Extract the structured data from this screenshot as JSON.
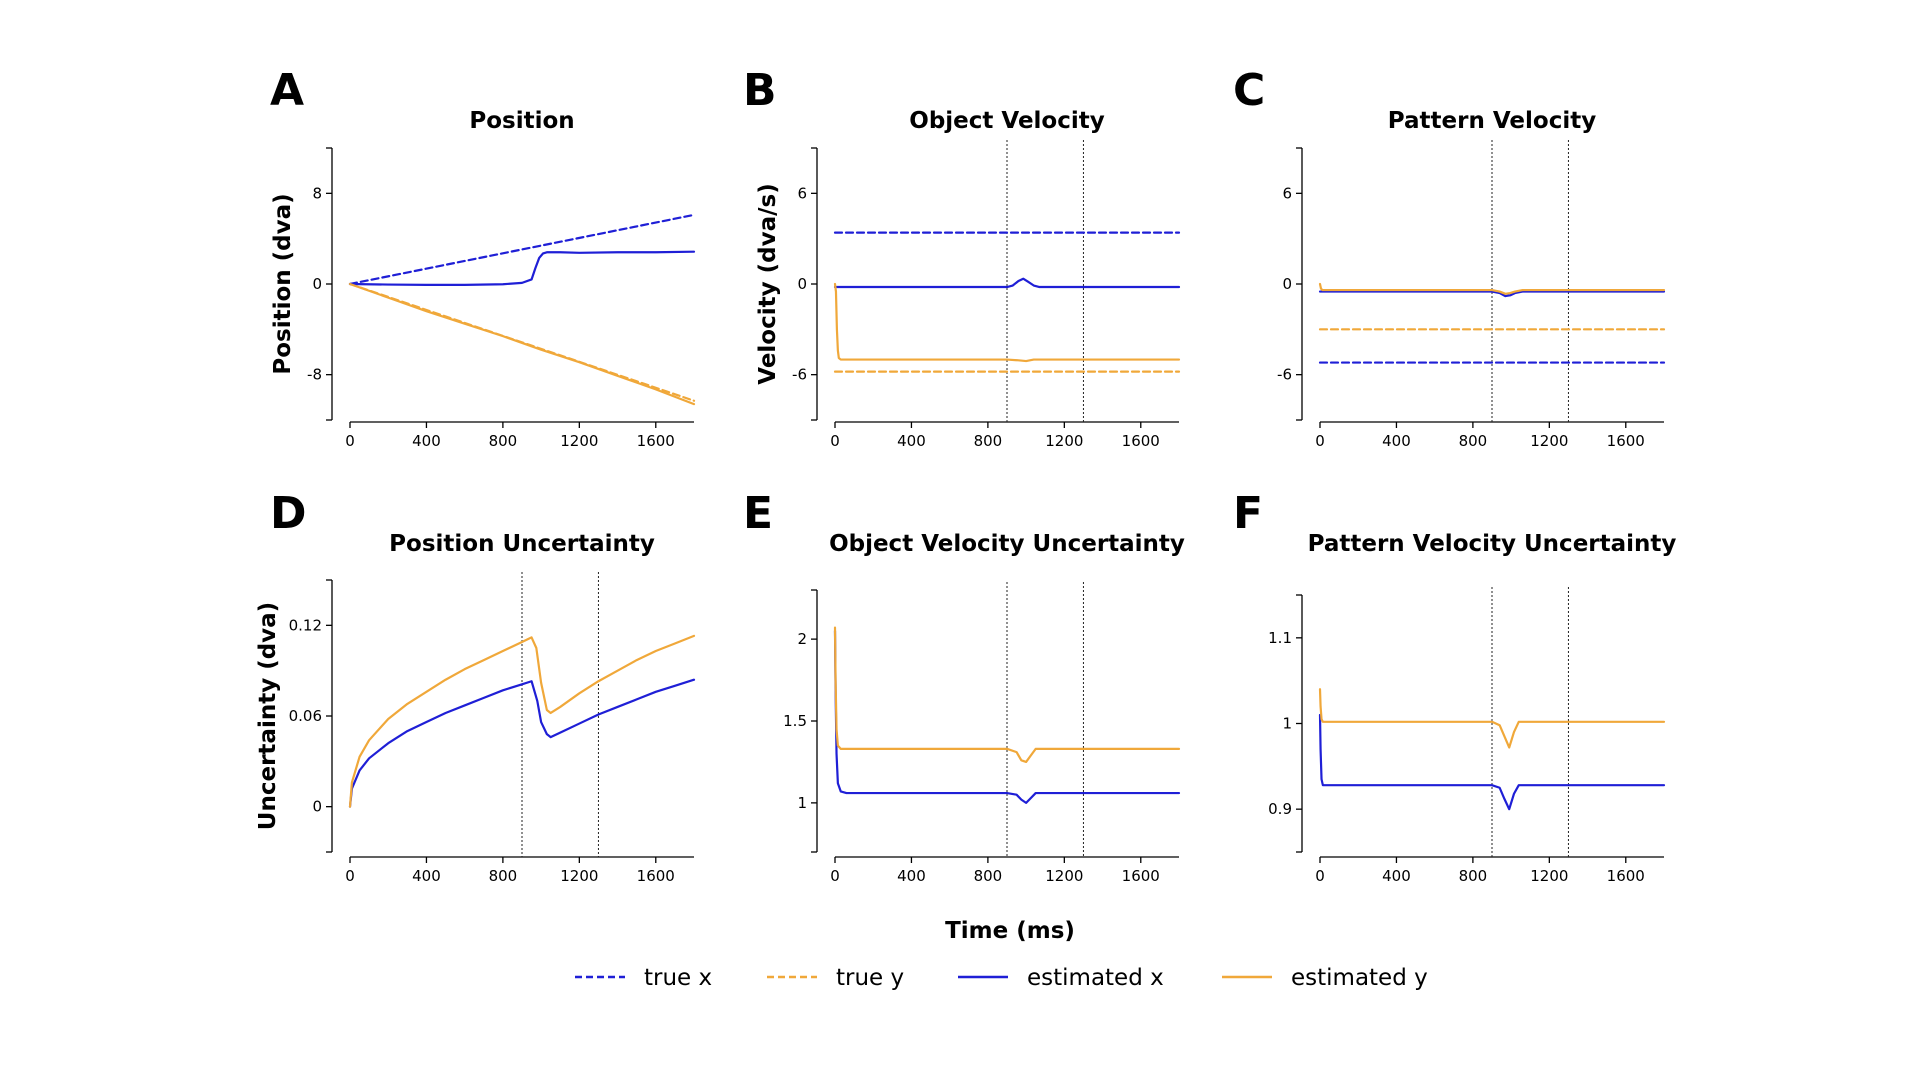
{
  "figure": {
    "shared_xlabel": "Time (ms)",
    "legend": [
      {
        "label": "true x",
        "color": "#1f1fd6",
        "dashed": true
      },
      {
        "label": "true y",
        "color": "#f0a83a",
        "dashed": true
      },
      {
        "label": "estimated x",
        "color": "#1f1fd6",
        "dashed": false
      },
      {
        "label": "estimated y",
        "color": "#f0a83a",
        "dashed": false
      }
    ],
    "colors": {
      "x": "#1f1fd6",
      "y": "#f0a83a"
    }
  },
  "chart_data": [
    {
      "id": "A",
      "letter": "A",
      "title": "Position",
      "type": "line",
      "ylabel": "Position (dva)",
      "xlim": [
        0,
        1800
      ],
      "xticks": [
        0,
        400,
        800,
        1200,
        1600
      ],
      "ylim": [
        -12,
        12
      ],
      "yticks": [
        -8,
        0,
        8
      ],
      "ytick_labels": [
        "-8",
        "0",
        "8"
      ],
      "vlines": [],
      "series": [
        {
          "key": "true_x",
          "color": "#1f1fd6",
          "dashed": true,
          "x": [
            0,
            1800
          ],
          "y": [
            0,
            6.1
          ]
        },
        {
          "key": "true_y",
          "color": "#f0a83a",
          "dashed": true,
          "x": [
            0,
            1800
          ],
          "y": [
            0,
            -10.3
          ]
        },
        {
          "key": "est_x",
          "color": "#1f1fd6",
          "dashed": false,
          "x": [
            0,
            200,
            400,
            600,
            800,
            900,
            950,
            970,
            990,
            1010,
            1030,
            1050,
            1100,
            1200,
            1400,
            1600,
            1800
          ],
          "y": [
            0,
            -0.05,
            -0.08,
            -0.08,
            -0.02,
            0.1,
            0.4,
            1.4,
            2.3,
            2.7,
            2.8,
            2.8,
            2.8,
            2.75,
            2.8,
            2.8,
            2.85
          ]
        },
        {
          "key": "est_y",
          "color": "#f0a83a",
          "dashed": false,
          "x": [
            0,
            200,
            400,
            600,
            800,
            950,
            1000,
            1200,
            1400,
            1600,
            1800
          ],
          "y": [
            0,
            -1.2,
            -2.4,
            -3.5,
            -4.6,
            -5.5,
            -5.8,
            -6.9,
            -8.1,
            -9.3,
            -10.6
          ]
        }
      ]
    },
    {
      "id": "B",
      "letter": "B",
      "title": "Object Velocity",
      "type": "line",
      "ylabel": "Velocity (dva/s)",
      "xlim": [
        0,
        1800
      ],
      "xticks": [
        0,
        400,
        800,
        1200,
        1600
      ],
      "ylim": [
        -9,
        9
      ],
      "yticks": [
        -6,
        0,
        6
      ],
      "ytick_labels": [
        "-6",
        "0",
        "6"
      ],
      "vlines": [
        900,
        1300
      ],
      "series": [
        {
          "key": "true_x",
          "color": "#1f1fd6",
          "dashed": true,
          "x": [
            0,
            1800
          ],
          "y": [
            3.4,
            3.4
          ]
        },
        {
          "key": "true_y",
          "color": "#f0a83a",
          "dashed": true,
          "x": [
            0,
            1800
          ],
          "y": [
            -5.8,
            -5.8
          ]
        },
        {
          "key": "est_x",
          "color": "#1f1fd6",
          "dashed": false,
          "x": [
            0,
            900,
            930,
            960,
            985,
            1010,
            1040,
            1070,
            1800
          ],
          "y": [
            -0.2,
            -0.2,
            -0.1,
            0.2,
            0.35,
            0.15,
            -0.1,
            -0.2,
            -0.2
          ]
        },
        {
          "key": "est_y",
          "color": "#f0a83a",
          "dashed": false,
          "x": [
            0,
            5,
            10,
            15,
            20,
            30,
            50,
            100,
            900,
            960,
            1000,
            1040,
            1800
          ],
          "y": [
            0,
            -0.5,
            -3.0,
            -4.4,
            -4.9,
            -5.0,
            -5.0,
            -5.0,
            -5.0,
            -5.05,
            -5.1,
            -5.0,
            -5.0
          ]
        }
      ]
    },
    {
      "id": "C",
      "letter": "C",
      "title": "Pattern Velocity",
      "type": "line",
      "ylabel": "",
      "xlim": [
        0,
        1800
      ],
      "xticks": [
        0,
        400,
        800,
        1200,
        1600
      ],
      "ylim": [
        -9,
        9
      ],
      "yticks": [
        -6,
        0,
        6
      ],
      "ytick_labels": [
        "-6",
        "0",
        "6"
      ],
      "vlines": [
        900,
        1300
      ],
      "series": [
        {
          "key": "true_x",
          "color": "#1f1fd6",
          "dashed": true,
          "x": [
            0,
            1800
          ],
          "y": [
            -5.2,
            -5.2
          ]
        },
        {
          "key": "true_y",
          "color": "#f0a83a",
          "dashed": true,
          "x": [
            0,
            1800
          ],
          "y": [
            -3.0,
            -3.0
          ]
        },
        {
          "key": "est_x",
          "color": "#1f1fd6",
          "dashed": false,
          "x": [
            0,
            900,
            940,
            970,
            995,
            1020,
            1060,
            1800
          ],
          "y": [
            -0.5,
            -0.5,
            -0.6,
            -0.8,
            -0.75,
            -0.6,
            -0.5,
            -0.5
          ]
        },
        {
          "key": "est_y",
          "color": "#f0a83a",
          "dashed": false,
          "x": [
            0,
            5,
            12,
            30,
            900,
            940,
            970,
            995,
            1020,
            1060,
            1800
          ],
          "y": [
            0.0,
            -0.3,
            -0.4,
            -0.4,
            -0.4,
            -0.5,
            -0.65,
            -0.6,
            -0.5,
            -0.4,
            -0.4
          ]
        }
      ]
    },
    {
      "id": "D",
      "letter": "D",
      "title": "Position Uncertainty",
      "type": "line",
      "ylabel": "Uncertainty (dva)",
      "xlim": [
        0,
        1800
      ],
      "xticks": [
        0,
        400,
        800,
        1200,
        1600
      ],
      "ylim": [
        -0.03,
        0.15
      ],
      "yticks": [
        0,
        0.06,
        0.12
      ],
      "ytick_labels": [
        "0",
        "0.06",
        "0.12"
      ],
      "vlines": [
        900,
        1300
      ],
      "series": [
        {
          "key": "est_x",
          "color": "#1f1fd6",
          "dashed": false,
          "x": [
            0,
            10,
            50,
            100,
            200,
            300,
            400,
            500,
            600,
            700,
            800,
            900,
            950,
            980,
            1000,
            1030,
            1050,
            1100,
            1200,
            1300,
            1400,
            1500,
            1600,
            1700,
            1800
          ],
          "y": [
            0,
            0.012,
            0.024,
            0.032,
            0.042,
            0.05,
            0.056,
            0.062,
            0.067,
            0.072,
            0.077,
            0.081,
            0.083,
            0.07,
            0.056,
            0.048,
            0.046,
            0.049,
            0.055,
            0.061,
            0.066,
            0.071,
            0.076,
            0.08,
            0.084
          ]
        },
        {
          "key": "est_y",
          "color": "#f0a83a",
          "dashed": false,
          "x": [
            0,
            10,
            50,
            100,
            200,
            300,
            400,
            500,
            600,
            700,
            800,
            900,
            950,
            975,
            1000,
            1030,
            1050,
            1100,
            1200,
            1300,
            1400,
            1500,
            1600,
            1700,
            1800
          ],
          "y": [
            0,
            0.016,
            0.033,
            0.044,
            0.058,
            0.068,
            0.076,
            0.084,
            0.091,
            0.097,
            0.103,
            0.109,
            0.112,
            0.105,
            0.082,
            0.064,
            0.062,
            0.066,
            0.075,
            0.083,
            0.09,
            0.097,
            0.103,
            0.108,
            0.113
          ]
        }
      ]
    },
    {
      "id": "E",
      "letter": "E",
      "title": "Object Velocity Uncertainty",
      "type": "line",
      "ylabel": "",
      "xlim": [
        0,
        1800
      ],
      "xticks": [
        0,
        400,
        800,
        1200,
        1600
      ],
      "ylim": [
        0.7,
        2.3
      ],
      "yticks": [
        1,
        1.5,
        2
      ],
      "ytick_labels": [
        "1",
        "1.5",
        "2"
      ],
      "vlines": [
        900,
        1300
      ],
      "series": [
        {
          "key": "est_x",
          "color": "#1f1fd6",
          "dashed": false,
          "x": [
            0,
            3,
            8,
            15,
            30,
            60,
            900,
            950,
            975,
            1000,
            1025,
            1050,
            1800
          ],
          "y": [
            2.05,
            1.7,
            1.3,
            1.12,
            1.07,
            1.06,
            1.06,
            1.05,
            1.02,
            1.0,
            1.03,
            1.06,
            1.06
          ]
        },
        {
          "key": "est_y",
          "color": "#f0a83a",
          "dashed": false,
          "x": [
            0,
            3,
            8,
            15,
            30,
            60,
            900,
            950,
            975,
            1000,
            1025,
            1050,
            1800
          ],
          "y": [
            2.07,
            1.75,
            1.45,
            1.35,
            1.33,
            1.33,
            1.33,
            1.31,
            1.26,
            1.25,
            1.29,
            1.33,
            1.33
          ]
        }
      ]
    },
    {
      "id": "F",
      "letter": "F",
      "title": "Pattern Velocity Uncertainty",
      "type": "line",
      "ylabel": "",
      "xlim": [
        0,
        1800
      ],
      "xticks": [
        0,
        400,
        800,
        1200,
        1600
      ],
      "ylim": [
        0.85,
        1.15
      ],
      "yticks": [
        0.9,
        1,
        1.1
      ],
      "ytick_labels": [
        "0.9",
        "1",
        "1.1"
      ],
      "vlines": [
        900,
        1300
      ],
      "series": [
        {
          "key": "est_x",
          "color": "#1f1fd6",
          "dashed": false,
          "x": [
            0,
            3,
            8,
            15,
            30,
            900,
            940,
            965,
            990,
            1015,
            1040,
            1800
          ],
          "y": [
            1.01,
            0.97,
            0.935,
            0.928,
            0.928,
            0.928,
            0.925,
            0.912,
            0.9,
            0.918,
            0.928,
            0.928
          ]
        },
        {
          "key": "est_y",
          "color": "#f0a83a",
          "dashed": false,
          "x": [
            0,
            3,
            8,
            15,
            30,
            900,
            940,
            965,
            990,
            1015,
            1040,
            1800
          ],
          "y": [
            1.04,
            1.02,
            1.005,
            1.002,
            1.002,
            1.002,
            0.998,
            0.985,
            0.972,
            0.99,
            1.002,
            1.002
          ]
        }
      ]
    }
  ]
}
